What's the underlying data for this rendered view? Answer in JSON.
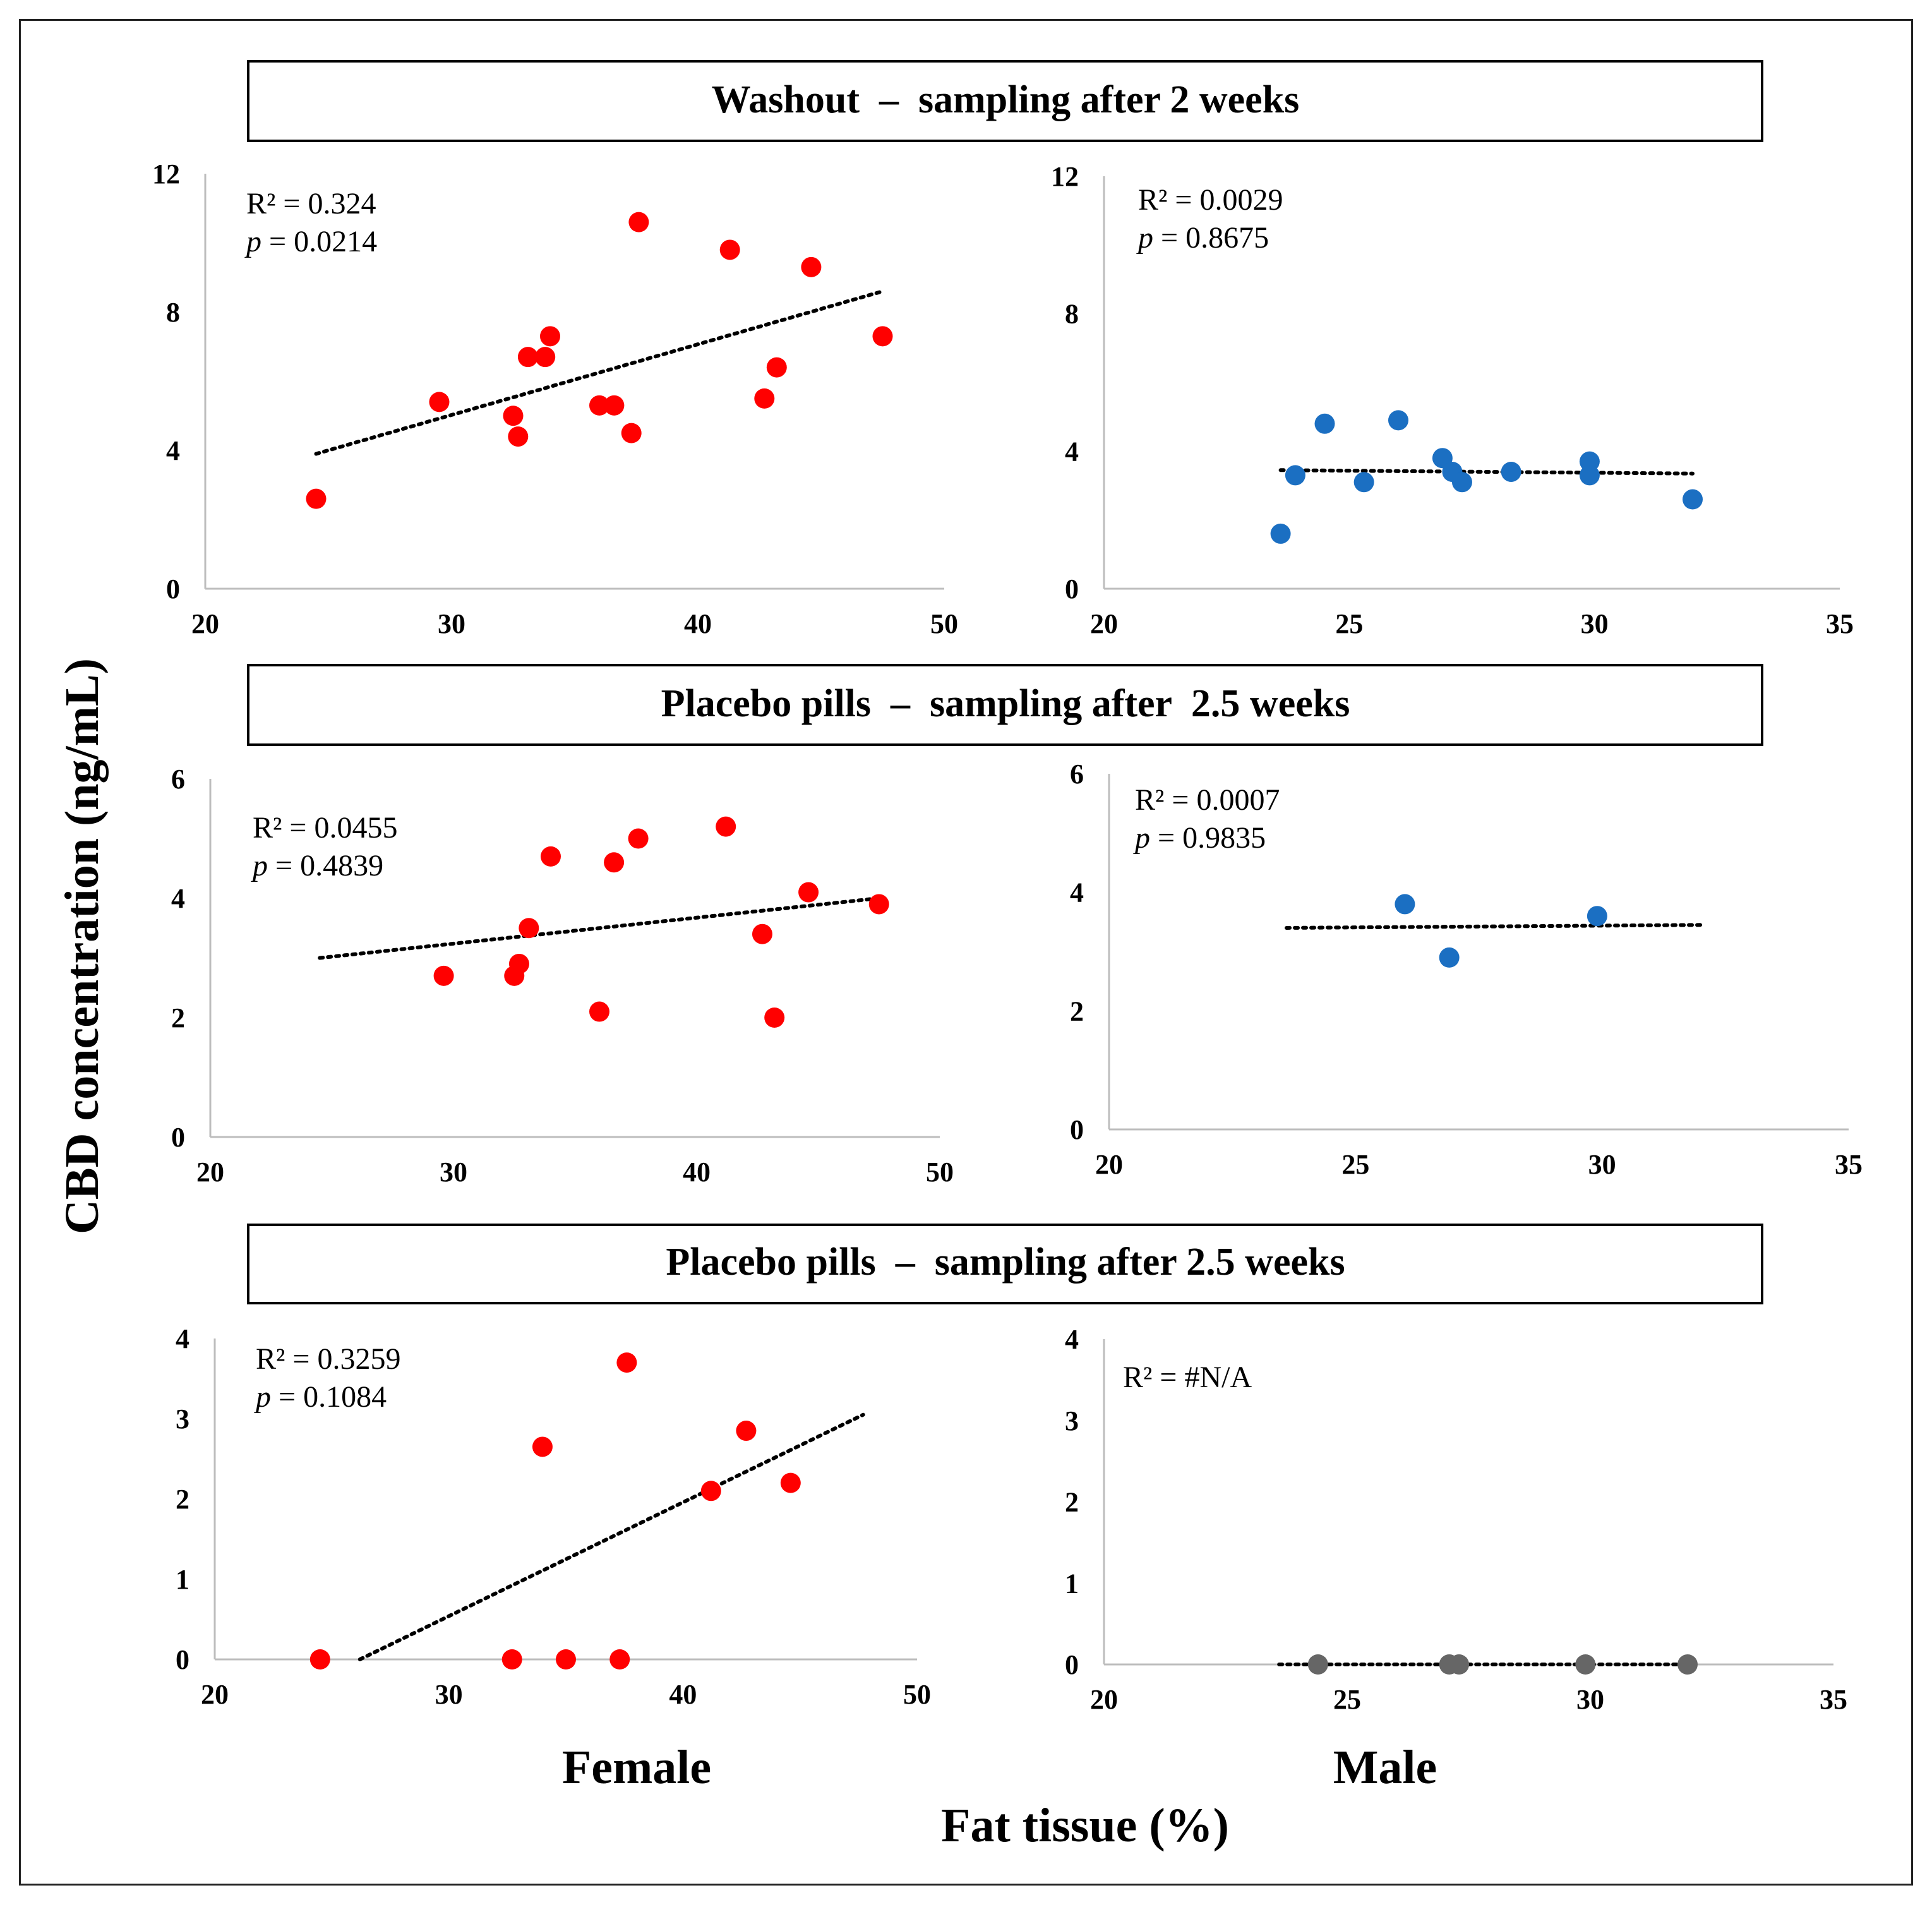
{
  "figure": {
    "y_axis_title": "CBD concentration (ng/mL)",
    "x_axis_title": "Fat tissue (%)",
    "female_label": "Female",
    "male_label": "Male",
    "colors": {
      "female": "#ff0000",
      "male": "#1b6fc2",
      "male_zero": "#666666",
      "trend": "#000000"
    }
  },
  "banners": [
    "Washout  –  sampling after 2 weeks",
    "Placebo pills  –  sampling after  2.5 weeks",
    "Placebo pills  –  sampling after 2.5 weeks"
  ],
  "chart_data": [
    {
      "type": "scatter",
      "id": "washout-female",
      "group": "Female",
      "title": "Washout  –  sampling after 2 weeks",
      "xlim": [
        20,
        50
      ],
      "ylim": [
        0,
        12
      ],
      "x_ticks": [
        "20",
        "30",
        "40",
        "50"
      ],
      "y_ticks": [
        "0",
        "4",
        "8",
        "12"
      ],
      "r2_text": "R² = 0.324",
      "p_label": "p",
      "p_value_text": " = 0.0214",
      "point_color": "female",
      "x": [
        24.5,
        29.5,
        32.5,
        32.7,
        33.1,
        33.8,
        34.0,
        36.0,
        36.6,
        37.3,
        37.6,
        41.3,
        42.7,
        43.2,
        44.6,
        47.5
      ],
      "y": [
        2.6,
        5.4,
        5.0,
        4.4,
        6.7,
        6.7,
        7.3,
        5.3,
        5.3,
        4.5,
        10.6,
        9.8,
        5.5,
        6.4,
        9.3,
        7.3
      ],
      "trend": {
        "x": [
          24.5,
          47.5
        ],
        "y": [
          3.9,
          8.6
        ]
      }
    },
    {
      "type": "scatter",
      "id": "washout-male",
      "group": "Male",
      "title": "Washout  –  sampling after 2 weeks",
      "xlim": [
        20,
        35
      ],
      "ylim": [
        0,
        12
      ],
      "x_ticks": [
        "20",
        "25",
        "30",
        "35"
      ],
      "y_ticks": [
        "0",
        "4",
        "8",
        "12"
      ],
      "r2_text": "R² = 0.0029",
      "p_label": "p",
      "p_value_text": " = 0.8675",
      "point_color": "male",
      "x": [
        23.6,
        23.9,
        24.5,
        25.3,
        26.0,
        26.9,
        27.1,
        27.3,
        28.3,
        29.9,
        29.9,
        32.0
      ],
      "y": [
        1.6,
        3.3,
        4.8,
        3.1,
        4.9,
        3.8,
        3.4,
        3.1,
        3.4,
        3.7,
        3.3,
        2.6
      ],
      "trend": {
        "x": [
          23.6,
          32.0
        ],
        "y": [
          3.45,
          3.35
        ]
      }
    },
    {
      "type": "scatter",
      "id": "placebo-female",
      "group": "Female",
      "title": "Placebo pills  –  sampling after  2.5 weeks",
      "xlim": [
        20,
        50
      ],
      "ylim": [
        0,
        6
      ],
      "x_ticks": [
        "20",
        "30",
        "40",
        "50"
      ],
      "y_ticks": [
        "0",
        "2",
        "4",
        "6"
      ],
      "r2_text": "R² = 0.0455",
      "p_label": "p",
      "p_value_text": " = 0.4839",
      "point_color": "female",
      "x": [
        29.6,
        32.5,
        32.7,
        33.1,
        34.0,
        36.0,
        36.6,
        37.6,
        41.2,
        42.7,
        43.2,
        44.6,
        47.5
      ],
      "y": [
        2.7,
        2.7,
        2.9,
        3.5,
        4.7,
        2.1,
        4.6,
        5.0,
        5.2,
        3.4,
        2.0,
        4.1,
        3.9
      ],
      "trend": {
        "x": [
          24.5,
          47.5
        ],
        "y": [
          3.0,
          4.0
        ]
      }
    },
    {
      "type": "scatter",
      "id": "placebo-male",
      "group": "Male",
      "title": "Placebo pills  –  sampling after  2.5 weeks",
      "xlim": [
        20,
        35
      ],
      "ylim": [
        0,
        6
      ],
      "x_ticks": [
        "20",
        "25",
        "30",
        "35"
      ],
      "y_ticks": [
        "0",
        "2",
        "4",
        "6"
      ],
      "r2_text": "R² = 0.0007",
      "p_label": "p",
      "p_value_text": " = 0.9835",
      "point_color": "male",
      "x": [
        26.0,
        26.9,
        29.9
      ],
      "y": [
        3.8,
        2.9,
        3.6
      ],
      "trend": {
        "x": [
          23.6,
          32.0
        ],
        "y": [
          3.4,
          3.45
        ]
      }
    },
    {
      "type": "scatter",
      "id": "placebo2-female",
      "group": "Female",
      "title": "Placebo pills  –  sampling after 2.5 weeks",
      "xlim": [
        20,
        50
      ],
      "ylim": [
        0,
        4
      ],
      "x_ticks": [
        "20",
        "30",
        "40",
        "50"
      ],
      "y_ticks": [
        "0",
        "1",
        "2",
        "3",
        "4"
      ],
      "r2_text": "R² = 0.3259",
      "p_label": "p",
      "p_value_text": " = 0.1084",
      "point_color": "female",
      "x": [
        24.5,
        32.7,
        35.0,
        37.3,
        34.0,
        37.6,
        41.2,
        42.7,
        44.6
      ],
      "y": [
        0.0,
        0.0,
        0.0,
        0.0,
        2.65,
        3.7,
        2.1,
        2.85,
        2.2
      ],
      "trend": {
        "x": [
          26.2,
          47.7
        ],
        "y": [
          0.0,
          3.05
        ]
      }
    },
    {
      "type": "scatter",
      "id": "placebo2-male",
      "group": "Male",
      "title": "Placebo pills  –  sampling after 2.5 weeks",
      "xlim": [
        20,
        35
      ],
      "ylim": [
        0,
        4
      ],
      "x_ticks": [
        "20",
        "25",
        "30",
        "35"
      ],
      "y_ticks": [
        "0",
        "1",
        "2",
        "3",
        "4"
      ],
      "r2_text": "R² = #N/A",
      "p_label": "",
      "p_value_text": "",
      "point_color": "male_zero",
      "x": [
        24.4,
        27.1,
        27.3,
        29.9,
        32.0
      ],
      "y": [
        0,
        0,
        0,
        0,
        0
      ],
      "trend": {
        "x": [
          23.6,
          32.0
        ],
        "y": [
          0,
          0
        ]
      }
    }
  ]
}
